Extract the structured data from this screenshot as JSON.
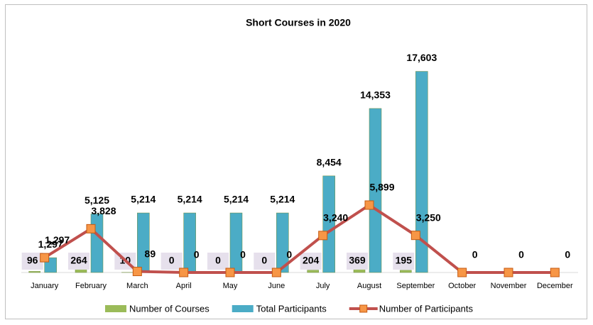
{
  "chart_data": {
    "type": "bar-line",
    "title": "Short Courses in 2020",
    "categories": [
      "January",
      "February",
      "March",
      "April",
      "May",
      "June",
      "July",
      "August",
      "September",
      "October",
      "November",
      "December"
    ],
    "ylim": [
      0,
      19500
    ],
    "series": [
      {
        "name": "Number of Courses",
        "type": "bar",
        "color": "#9bbb59",
        "values": [
          96,
          264,
          10,
          0,
          0,
          0,
          204,
          369,
          195,
          null,
          null,
          null
        ]
      },
      {
        "name": "Total Participants",
        "type": "bar",
        "color": "#4bacc6",
        "values": [
          1297,
          5125,
          5214,
          5214,
          5214,
          5214,
          8454,
          14353,
          17603,
          null,
          null,
          null
        ],
        "value_labels": [
          "1,297",
          "5,125",
          "5,214",
          "5,214",
          "5,214",
          "5,214",
          "8,454",
          "14,353",
          "17,603",
          null,
          null,
          null
        ]
      },
      {
        "name": "Number of Participants",
        "type": "line",
        "color": "#c0504d",
        "marker_color": "#f79646",
        "values": [
          1297,
          3828,
          89,
          0,
          0,
          0,
          3240,
          5899,
          3250,
          0,
          0,
          0
        ],
        "value_labels": [
          "1,297",
          "3,828",
          "89",
          "0",
          "0",
          "0",
          "3,240",
          "5,899",
          "3,250",
          "0",
          "0",
          "0"
        ]
      }
    ]
  }
}
